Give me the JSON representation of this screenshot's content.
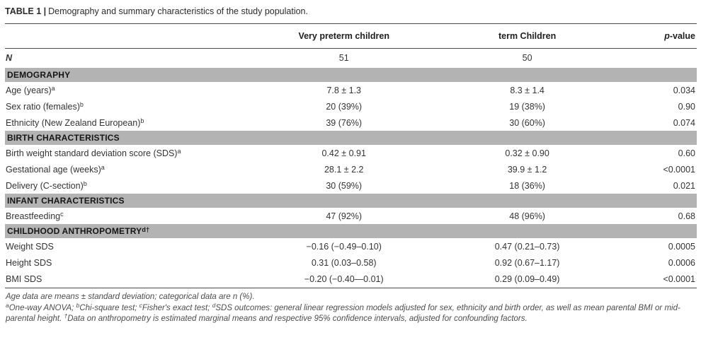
{
  "title": {
    "label": "TABLE 1 |",
    "caption": "Demography and summary characteristics of the study population."
  },
  "header": {
    "col_group1": "Very preterm children",
    "col_group2": "term Children",
    "p_italic": "p",
    "p_rest": "-value"
  },
  "sections": [
    {
      "band": "",
      "band_sup": "",
      "rows": [
        {
          "label": "N",
          "sup": "",
          "emph": true,
          "c1": "51",
          "c2": "50",
          "p": ""
        }
      ]
    },
    {
      "band": "DEMOGRAPHY",
      "band_sup": "",
      "rows": [
        {
          "label": "Age (years)",
          "sup": "a",
          "c1": "7.8 ± 1.3",
          "c2": "8.3 ± 1.4",
          "p": "0.034"
        },
        {
          "label": "Sex ratio (females)",
          "sup": "b",
          "c1": "20 (39%)",
          "c2": "19 (38%)",
          "p": "0.90"
        },
        {
          "label": "Ethnicity (New Zealand European)",
          "sup": "b",
          "c1": "39 (76%)",
          "c2": "30 (60%)",
          "p": "0.074"
        }
      ]
    },
    {
      "band": "BIRTH CHARACTERISTICS",
      "band_sup": "",
      "rows": [
        {
          "label": "Birth weight standard deviation score (SDS)",
          "sup": "a",
          "c1": "0.42 ± 0.91",
          "c2": "0.32 ± 0.90",
          "p": "0.60"
        },
        {
          "label": "Gestational age (weeks)",
          "sup": "a",
          "c1": "28.1 ± 2.2",
          "c2": "39.9 ± 1.2",
          "p": "<0.0001"
        },
        {
          "label": "Delivery (C-section)",
          "sup": "b",
          "c1": "30 (59%)",
          "c2": "18 (36%)",
          "p": "0.021"
        }
      ]
    },
    {
      "band": "INFANT CHARACTERISTICS",
      "band_sup": "",
      "rows": [
        {
          "label": "Breastfeeding",
          "sup": "c",
          "c1": "47 (92%)",
          "c2": "48 (96%)",
          "p": "0.68"
        }
      ]
    },
    {
      "band": "CHILDHOOD ANTHROPOMETRY",
      "band_sup": "d†",
      "rows": [
        {
          "label": "Weight SDS",
          "sup": "",
          "c1": "−0.16 (−0.49–0.10)",
          "c2": "0.47 (0.21–0.73)",
          "p": "0.0005"
        },
        {
          "label": "Height SDS",
          "sup": "",
          "c1": "0.31 (0.03–0.58)",
          "c2": "0.92 (0.67–1.17)",
          "p": "0.0006"
        },
        {
          "label": "BMI SDS",
          "sup": "",
          "c1": "−0.20 (−0.40—0.01)",
          "c2": "0.29 (0.09–0.49)",
          "p": "<0.0001"
        }
      ]
    }
  ],
  "footnotes": {
    "line1": "Age data are means ± standard deviation; categorical data are n (%).",
    "line2_parts": [
      {
        "sup": "a",
        "text": "One-way ANOVA; "
      },
      {
        "sup": "b",
        "text": "Chi-square test; "
      },
      {
        "sup": "c",
        "text": "Fisher's exact test; "
      },
      {
        "sup": "d",
        "text": "SDS outcomes: general linear regression models adjusted for sex, ethnicity and birth order, as well as mean parental BMI or mid-parental height. "
      },
      {
        "sup": "†",
        "text": "Data on anthropometry is estimated marginal means and respective 95% confidence intervals, adjusted for confounding factors."
      }
    ]
  },
  "colors": {
    "band_background": "#b3b3b3",
    "rule": "#4a4a4a",
    "body_text": "#333333",
    "footnote_text": "#4c4c4c"
  }
}
